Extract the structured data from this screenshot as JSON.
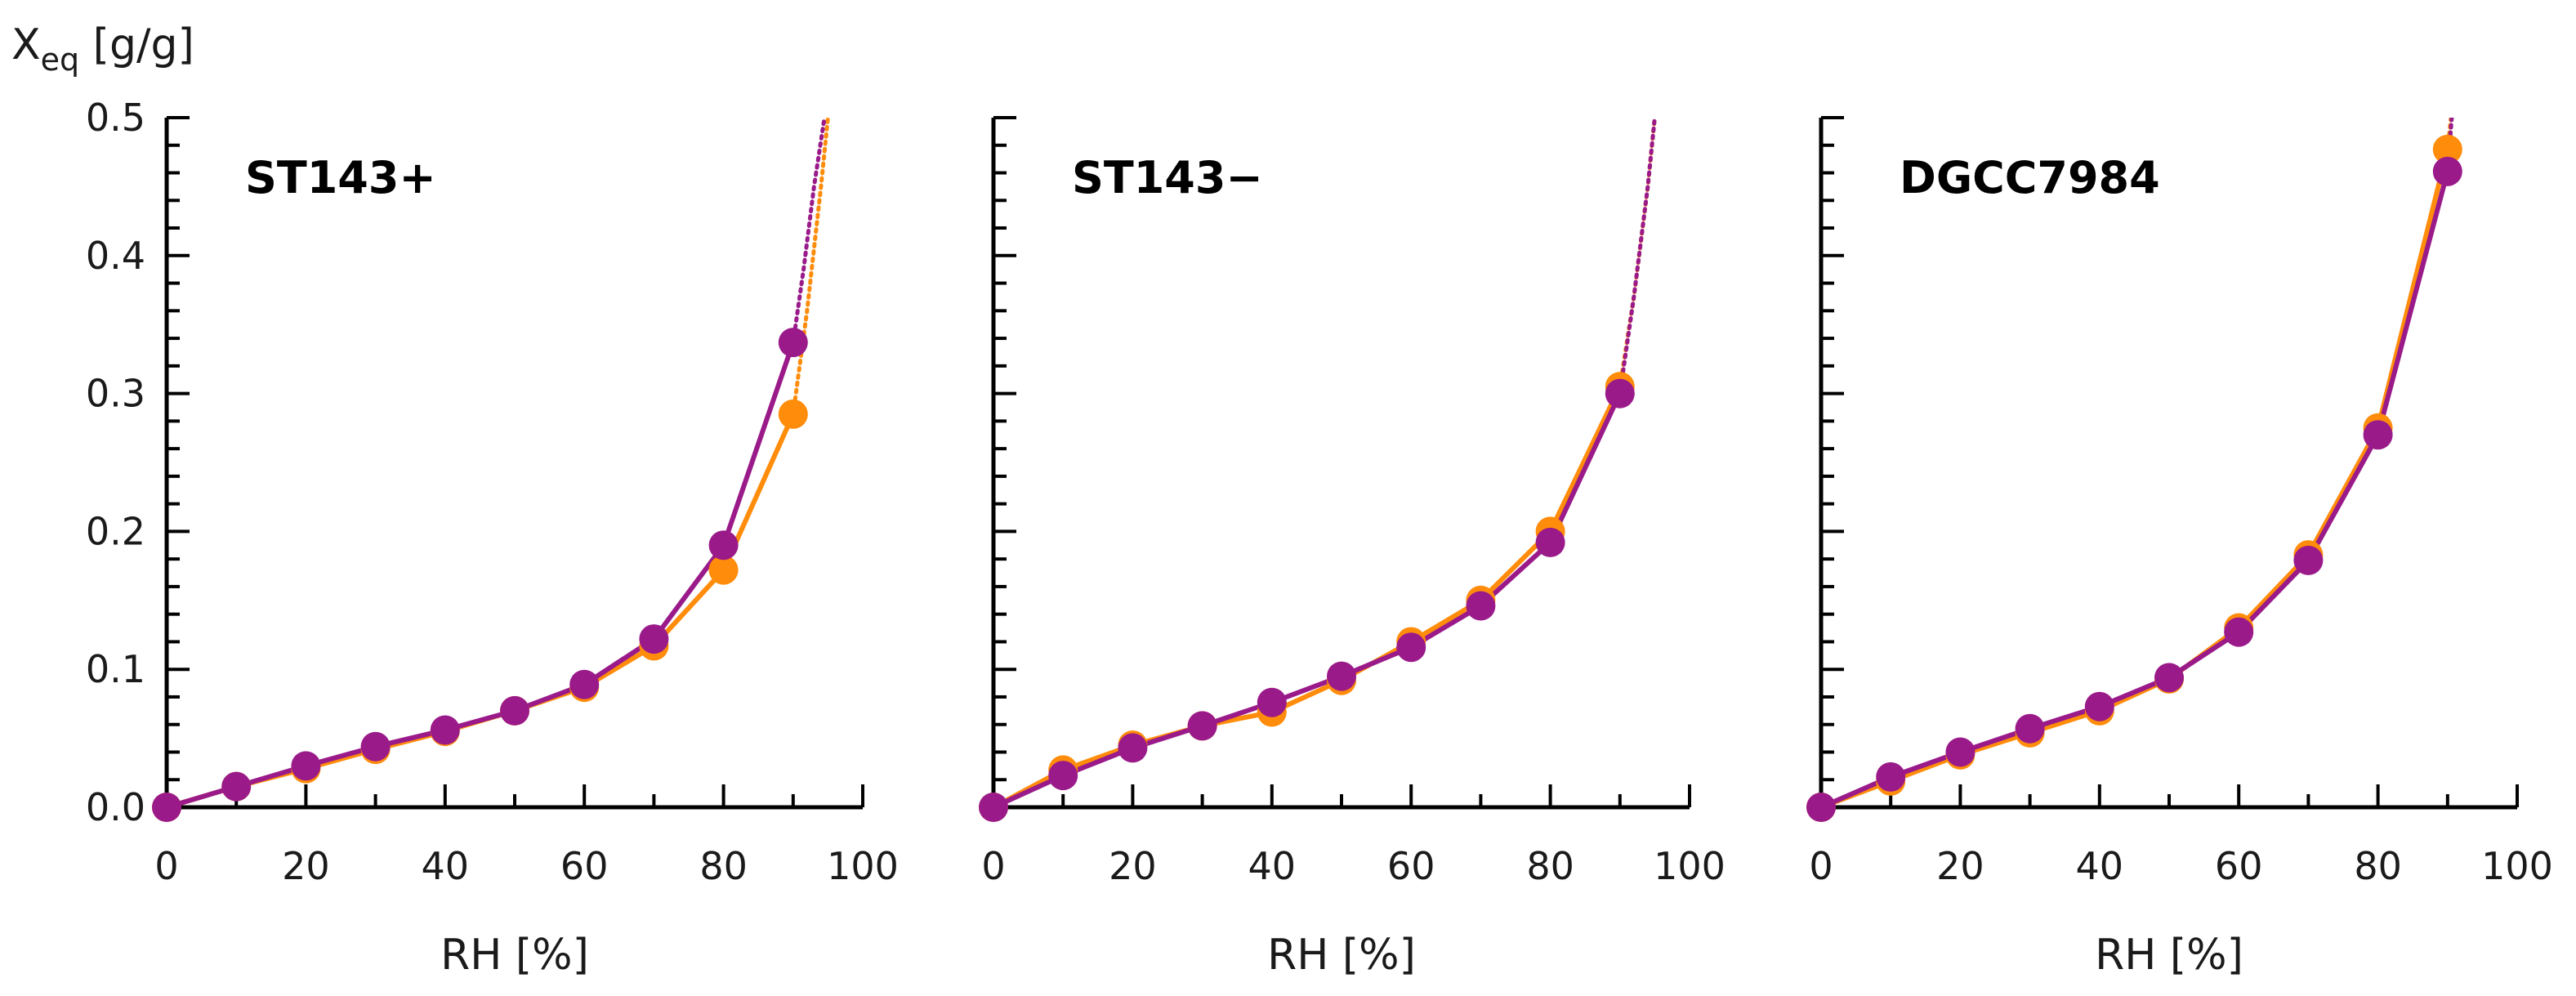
{
  "figure": {
    "y_axis_title_main": "X",
    "y_axis_title_sub": "eq",
    "y_axis_title_unit": " [g/g]"
  },
  "colors": {
    "orange": "#ff8c0a",
    "purple": "#9a1a8a"
  },
  "chart_data": [
    {
      "type": "line",
      "title": "ST143+",
      "xlabel": "RH [%]",
      "ylabel": "Xeq [g/g]",
      "xlim": [
        0,
        100
      ],
      "ylim": [
        0,
        0.5
      ],
      "xticks": [
        "0",
        "20",
        "40",
        "60",
        "80",
        "100"
      ],
      "yticks": [
        "0.0",
        "0.1",
        "0.2",
        "0.3",
        "0.4",
        "0.5"
      ],
      "x": [
        0,
        10,
        20,
        30,
        40,
        50,
        60,
        70,
        80,
        90
      ],
      "series": [
        {
          "name": "orange",
          "color": "#ff8c0a",
          "values": [
            0.0,
            0.015,
            0.028,
            0.042,
            0.055,
            0.07,
            0.087,
            0.117,
            0.172,
            0.285
          ],
          "extrapolation": {
            "x": [
              90,
              92,
              94,
              95
            ],
            "y": [
              0.285,
              0.36,
              0.45,
              0.5
            ]
          }
        },
        {
          "name": "purple",
          "color": "#9a1a8a",
          "values": [
            0.0,
            0.015,
            0.03,
            0.044,
            0.056,
            0.07,
            0.089,
            0.122,
            0.19,
            0.337
          ],
          "extrapolation": {
            "x": [
              90,
              91.5,
              93,
              94.5
            ],
            "y": [
              0.337,
              0.39,
              0.45,
              0.5
            ]
          }
        }
      ]
    },
    {
      "type": "line",
      "title": "ST143−",
      "xlabel": "RH [%]",
      "ylabel": "Xeq [g/g]",
      "xlim": [
        0,
        100
      ],
      "ylim": [
        0,
        0.5
      ],
      "xticks": [
        "0",
        "20",
        "40",
        "60",
        "80",
        "100"
      ],
      "yticks": [
        "0.0",
        "0.1",
        "0.2",
        "0.3",
        "0.4",
        "0.5"
      ],
      "x": [
        0,
        10,
        20,
        30,
        40,
        50,
        60,
        70,
        80,
        90
      ],
      "series": [
        {
          "name": "orange",
          "color": "#ff8c0a",
          "values": [
            0.0,
            0.027,
            0.045,
            0.059,
            0.069,
            0.092,
            0.12,
            0.15,
            0.2,
            0.305
          ],
          "extrapolation": {
            "x": [
              90,
              92,
              94,
              95
            ],
            "y": [
              0.305,
              0.37,
              0.45,
              0.5
            ]
          }
        },
        {
          "name": "purple",
          "color": "#9a1a8a",
          "values": [
            0.0,
            0.023,
            0.043,
            0.059,
            0.076,
            0.095,
            0.116,
            0.146,
            0.192,
            0.3
          ],
          "extrapolation": {
            "x": [
              90,
              92,
              94,
              95
            ],
            "y": [
              0.3,
              0.37,
              0.45,
              0.5
            ]
          }
        }
      ]
    },
    {
      "type": "line",
      "title": "DGCC7984",
      "xlabel": "RH [%]",
      "ylabel": "Xeq [g/g]",
      "xlim": [
        0,
        100
      ],
      "ylim": [
        0,
        0.5
      ],
      "xticks": [
        "0",
        "20",
        "40",
        "60",
        "80",
        "100"
      ],
      "yticks": [
        "0.0",
        "0.1",
        "0.2",
        "0.3",
        "0.4",
        "0.5"
      ],
      "x": [
        0,
        10,
        20,
        30,
        40,
        50,
        60,
        70,
        80,
        90
      ],
      "series": [
        {
          "name": "orange",
          "color": "#ff8c0a",
          "values": [
            0.0,
            0.019,
            0.038,
            0.054,
            0.07,
            0.093,
            0.13,
            0.183,
            0.275,
            0.477
          ],
          "extrapolation": {
            "x": [
              90,
              90.5
            ],
            "y": [
              0.477,
              0.5
            ]
          }
        },
        {
          "name": "purple",
          "color": "#9a1a8a",
          "values": [
            0.0,
            0.022,
            0.04,
            0.057,
            0.073,
            0.094,
            0.127,
            0.179,
            0.27,
            0.461
          ],
          "extrapolation": {
            "x": [
              90,
              90.6
            ],
            "y": [
              0.461,
              0.5
            ]
          }
        }
      ]
    }
  ]
}
